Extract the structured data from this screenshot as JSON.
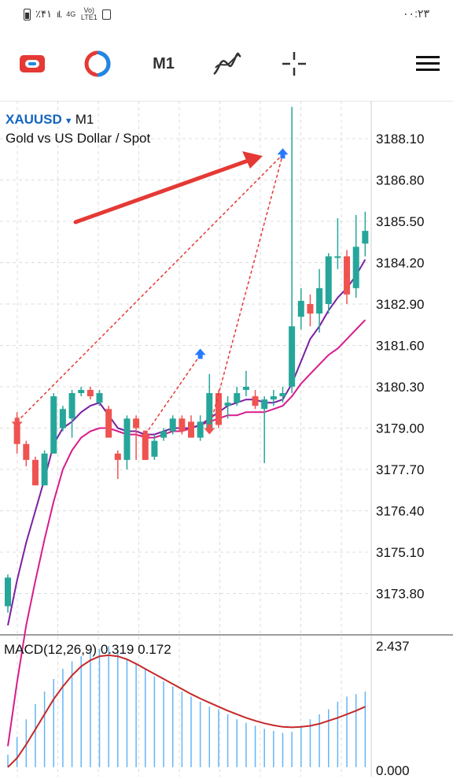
{
  "status_bar": {
    "battery": "٪۴۱",
    "signal_a": "4G",
    "signal_b": "Vo) LTE1",
    "time": "۰۰:۲۳"
  },
  "toolbar": {
    "timeframe": "M1",
    "icons": [
      "indicators-icon",
      "objects-icon",
      "timeframe",
      "indicator-curve-icon",
      "crosshair-icon",
      "menu-icon"
    ]
  },
  "symbol": {
    "name": "XAUUSD",
    "timeframe": "M1",
    "description": "Gold vs US Dollar / Spot"
  },
  "macd": {
    "label": "MACD(12,26,9)",
    "value_main": "0.319",
    "value_signal": "0.172",
    "scale_top": "2.437",
    "scale_bottom": "0.000"
  },
  "colors": {
    "bull": "#26a69a",
    "bear": "#ef5350",
    "ma_fast": "#7b1fa2",
    "ma_slow": "#d81b8c",
    "signal_line": "#c62828",
    "arrow_up": "#2979ff",
    "annotation_arrow": "#e53935",
    "symbol_blue": "#1565c0"
  },
  "chart_data": {
    "type": "candlestick",
    "y_ticks": [
      "3188.10",
      "3186.80",
      "3185.50",
      "3184.20",
      "3182.90",
      "3181.60",
      "3180.30",
      "3179.00",
      "3177.70",
      "3176.40",
      "3175.10",
      "3173.80"
    ],
    "ylim": [
      3172.8,
      3189.2
    ],
    "candles": [
      {
        "o": 3173.4,
        "h": 3174.4,
        "l": 3173.2,
        "c": 3174.3
      },
      {
        "o": 3179.2,
        "h": 3179.5,
        "l": 3178.2,
        "c": 3178.5
      },
      {
        "o": 3178.5,
        "h": 3178.6,
        "l": 3177.8,
        "c": 3178.0
      },
      {
        "o": 3178.0,
        "h": 3178.1,
        "l": 3177.2,
        "c": 3177.2
      },
      {
        "o": 3177.2,
        "h": 3178.3,
        "l": 3177.2,
        "c": 3178.2
      },
      {
        "o": 3178.2,
        "h": 3180.1,
        "l": 3178.2,
        "c": 3180.0
      },
      {
        "o": 3179.0,
        "h": 3179.7,
        "l": 3178.9,
        "c": 3179.6
      },
      {
        "o": 3179.3,
        "h": 3180.2,
        "l": 3178.7,
        "c": 3180.1
      },
      {
        "o": 3180.1,
        "h": 3180.3,
        "l": 3180.0,
        "c": 3180.2
      },
      {
        "o": 3180.2,
        "h": 3180.3,
        "l": 3179.9,
        "c": 3180.0
      },
      {
        "o": 3179.8,
        "h": 3180.2,
        "l": 3179.7,
        "c": 3180.1
      },
      {
        "o": 3179.6,
        "h": 3179.7,
        "l": 3178.7,
        "c": 3178.7
      },
      {
        "o": 3178.2,
        "h": 3178.3,
        "l": 3177.4,
        "c": 3178.0
      },
      {
        "o": 3178.0,
        "h": 3179.4,
        "l": 3177.7,
        "c": 3179.3
      },
      {
        "o": 3179.3,
        "h": 3179.4,
        "l": 3178.0,
        "c": 3179.0
      },
      {
        "o": 3178.8,
        "h": 3178.9,
        "l": 3178.0,
        "c": 3178.0
      },
      {
        "o": 3178.1,
        "h": 3178.8,
        "l": 3178.0,
        "c": 3178.6
      },
      {
        "o": 3178.7,
        "h": 3179.0,
        "l": 3178.6,
        "c": 3178.9
      },
      {
        "o": 3178.9,
        "h": 3179.4,
        "l": 3178.8,
        "c": 3179.3
      },
      {
        "o": 3179.3,
        "h": 3179.4,
        "l": 3178.8,
        "c": 3178.9
      },
      {
        "o": 3179.2,
        "h": 3179.4,
        "l": 3178.8,
        "c": 3178.7
      },
      {
        "o": 3178.7,
        "h": 3179.4,
        "l": 3178.6,
        "c": 3179.2
      },
      {
        "o": 3179.0,
        "h": 3180.7,
        "l": 3178.9,
        "c": 3180.1
      },
      {
        "o": 3180.1,
        "h": 3180.2,
        "l": 3179.0,
        "c": 3179.1
      },
      {
        "o": 3179.7,
        "h": 3180.0,
        "l": 3179.3,
        "c": 3179.8
      },
      {
        "o": 3179.8,
        "h": 3180.3,
        "l": 3179.7,
        "c": 3180.1
      },
      {
        "o": 3180.2,
        "h": 3180.8,
        "l": 3180.0,
        "c": 3180.3
      },
      {
        "o": 3180.0,
        "h": 3180.2,
        "l": 3179.6,
        "c": 3179.7
      },
      {
        "o": 3179.6,
        "h": 3180.0,
        "l": 3177.9,
        "c": 3179.9
      },
      {
        "o": 3179.9,
        "h": 3180.2,
        "l": 3179.7,
        "c": 3180.0
      },
      {
        "o": 3180.0,
        "h": 3180.3,
        "l": 3179.8,
        "c": 3180.1
      },
      {
        "o": 3180.3,
        "h": 3189.1,
        "l": 3180.1,
        "c": 3182.2
      },
      {
        "o": 3182.5,
        "h": 3183.4,
        "l": 3182.1,
        "c": 3183.0
      },
      {
        "o": 3182.9,
        "h": 3183.2,
        "l": 3182.2,
        "c": 3182.6
      },
      {
        "o": 3182.6,
        "h": 3184.0,
        "l": 3182.0,
        "c": 3183.4
      },
      {
        "o": 3182.9,
        "h": 3184.5,
        "l": 3182.6,
        "c": 3184.4
      },
      {
        "o": 3184.4,
        "h": 3185.6,
        "l": 3184.0,
        "c": 3184.4
      },
      {
        "o": 3184.4,
        "h": 3184.6,
        "l": 3182.9,
        "c": 3183.2
      },
      {
        "o": 3183.4,
        "h": 3185.7,
        "l": 3183.1,
        "c": 3184.7
      },
      {
        "o": 3184.8,
        "h": 3185.8,
        "l": 3184.4,
        "c": 3185.2
      }
    ],
    "ma_fast": [
      3172.8,
      3174.2,
      3175.4,
      3176.4,
      3177.4,
      3178.5,
      3179.0,
      3179.2,
      3179.5,
      3179.7,
      3179.8,
      3179.4,
      3179.0,
      3178.9,
      3178.9,
      3178.8,
      3178.8,
      3178.9,
      3179.0,
      3179.0,
      3179.0,
      3179.1,
      3179.3,
      3179.5,
      3179.7,
      3179.8,
      3179.9,
      3179.9,
      3179.8,
      3179.8,
      3179.9,
      3180.4,
      3181.1,
      3181.8,
      3182.2,
      3182.7,
      3183.1,
      3183.4,
      3183.8,
      3184.3
    ],
    "ma_slow": [
      3169.0,
      3171.0,
      3172.8,
      3174.2,
      3175.5,
      3176.7,
      3177.7,
      3178.3,
      3178.7,
      3178.9,
      3179.0,
      3179.0,
      3178.9,
      3178.8,
      3178.8,
      3178.7,
      3178.7,
      3178.8,
      3178.9,
      3178.9,
      3179.0,
      3179.1,
      3179.2,
      3179.3,
      3179.4,
      3179.4,
      3179.5,
      3179.5,
      3179.5,
      3179.6,
      3179.7,
      3180.0,
      3180.4,
      3180.7,
      3181.0,
      3181.3,
      3181.5,
      3181.8,
      3182.1,
      3182.4
    ],
    "macd_hist": [
      0.25,
      0.6,
      0.95,
      1.25,
      1.5,
      1.75,
      1.95,
      2.1,
      2.2,
      2.3,
      2.35,
      2.4,
      2.3,
      2.15,
      2.05,
      1.95,
      1.8,
      1.7,
      1.6,
      1.5,
      1.4,
      1.3,
      1.2,
      1.15,
      1.05,
      0.95,
      0.88,
      0.82,
      0.76,
      0.72,
      0.68,
      0.7,
      0.82,
      0.95,
      1.05,
      1.15,
      1.3,
      1.4,
      1.45,
      1.5
    ],
    "macd_signal": [
      0.0,
      0.18,
      0.45,
      0.75,
      1.05,
      1.35,
      1.6,
      1.82,
      2.0,
      2.12,
      2.2,
      2.22,
      2.2,
      2.14,
      2.05,
      1.95,
      1.85,
      1.75,
      1.65,
      1.55,
      1.45,
      1.36,
      1.28,
      1.2,
      1.12,
      1.05,
      0.98,
      0.92,
      0.87,
      0.83,
      0.8,
      0.79,
      0.8,
      0.82,
      0.86,
      0.92,
      0.98,
      1.05,
      1.12,
      1.2
    ],
    "trade_markers": [
      {
        "type": "sell",
        "candle": 1,
        "price": 3179.2
      },
      {
        "type": "sell",
        "candle": 15,
        "price": 3178.8
      },
      {
        "type": "buy",
        "candle": 21,
        "price": 3181.3
      },
      {
        "type": "sell",
        "candle": 22,
        "price": 3179.0
      },
      {
        "type": "buy",
        "candle": 30,
        "price": 3187.6
      }
    ],
    "trade_lines": [
      {
        "from": [
          1,
          3179.2
        ],
        "to": [
          30,
          3187.6
        ]
      },
      {
        "from": [
          15,
          3178.8
        ],
        "to": [
          21,
          3181.3
        ]
      },
      {
        "from": [
          22,
          3179.0
        ],
        "to": [
          30,
          3187.6
        ]
      }
    ],
    "grid": true
  }
}
